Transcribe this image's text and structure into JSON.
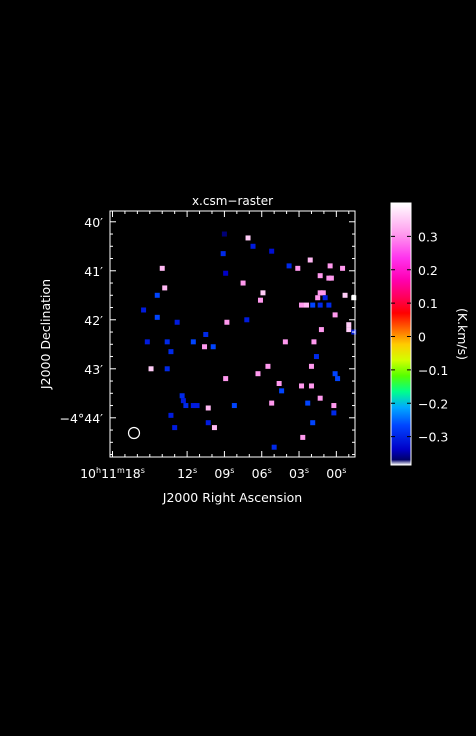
{
  "chart_data": {
    "type": "scatter",
    "title": "x.csm−raster",
    "xlabel": "J2000 Right Ascension",
    "ylabel": "J2000 Declination",
    "colorbar_label": "(K.km/s)",
    "x_ticks": [
      {
        "s": 78,
        "h": "10",
        "m": "11",
        "sec": "18"
      },
      {
        "s": 72,
        "sec": "12"
      },
      {
        "s": 69,
        "sec": "09"
      },
      {
        "s": 66,
        "sec": "06"
      },
      {
        "s": 63,
        "sec": "03"
      },
      {
        "s": 60,
        "sec": "00"
      }
    ],
    "y_ticks": [
      {
        "arcmin": 40,
        "label": "40′"
      },
      {
        "arcmin": 41,
        "label": "41′"
      },
      {
        "arcmin": 42,
        "label": "42′"
      },
      {
        "arcmin": 43,
        "label": "43′"
      },
      {
        "arcmin": 44,
        "label": "−4°44′"
      }
    ],
    "xlim_s": [
      78.2,
      58.5
    ],
    "ylim_arcmin": [
      39.78,
      44.8
    ],
    "cbar_ticks": [
      {
        "v": 0.3,
        "label": "0.3"
      },
      {
        "v": 0.2,
        "label": "0.2"
      },
      {
        "v": 0.1,
        "label": "0.1"
      },
      {
        "v": 0.0,
        "label": "0"
      },
      {
        "v": -0.1,
        "label": "−0.1"
      },
      {
        "v": -0.2,
        "label": "−0.2"
      },
      {
        "v": -0.3,
        "label": "−0.3"
      }
    ],
    "cbar_range": [
      -0.385,
      0.4
    ],
    "points": [
      {
        "s": 69.0,
        "d": 40.25,
        "v": -0.38
      },
      {
        "s": 67.1,
        "d": 40.33,
        "v": 0.35
      },
      {
        "s": 66.7,
        "d": 40.5,
        "v": -0.33
      },
      {
        "s": 69.1,
        "d": 40.65,
        "v": -0.32
      },
      {
        "s": 65.2,
        "d": 40.6,
        "v": -0.34
      },
      {
        "s": 62.1,
        "d": 40.78,
        "v": 0.33
      },
      {
        "s": 63.1,
        "d": 40.95,
        "v": 0.3
      },
      {
        "s": 60.5,
        "d": 40.9,
        "v": 0.3
      },
      {
        "s": 59.5,
        "d": 40.95,
        "v": 0.3
      },
      {
        "s": 74.0,
        "d": 40.95,
        "v": 0.33
      },
      {
        "s": 63.8,
        "d": 40.9,
        "v": -0.32
      },
      {
        "s": 68.9,
        "d": 41.05,
        "v": -0.35
      },
      {
        "s": 61.3,
        "d": 41.1,
        "v": 0.3
      },
      {
        "s": 60.6,
        "d": 41.15,
        "v": 0.3
      },
      {
        "s": 60.4,
        "d": 41.15,
        "v": 0.3
      },
      {
        "s": 67.5,
        "d": 41.25,
        "v": 0.3
      },
      {
        "s": 73.8,
        "d": 41.35,
        "v": 0.33
      },
      {
        "s": 65.9,
        "d": 41.45,
        "v": 0.35
      },
      {
        "s": 61.3,
        "d": 41.45,
        "v": 0.3
      },
      {
        "s": 61.05,
        "d": 41.45,
        "v": 0.3
      },
      {
        "s": 74.4,
        "d": 41.5,
        "v": -0.3
      },
      {
        "s": 59.3,
        "d": 41.5,
        "v": 0.35
      },
      {
        "s": 61.5,
        "d": 41.55,
        "v": 0.3
      },
      {
        "s": 60.9,
        "d": 41.55,
        "v": -0.33
      },
      {
        "s": 66.1,
        "d": 41.6,
        "v": 0.3
      },
      {
        "s": 58.6,
        "d": 41.55,
        "v": 0.4
      },
      {
        "s": 62.8,
        "d": 41.7,
        "v": 0.3
      },
      {
        "s": 62.4,
        "d": 41.7,
        "v": 0.33
      },
      {
        "s": 61.9,
        "d": 41.7,
        "v": -0.3
      },
      {
        "s": 61.3,
        "d": 41.7,
        "v": -0.32
      },
      {
        "s": 60.6,
        "d": 41.7,
        "v": -0.32
      },
      {
        "s": 75.5,
        "d": 41.8,
        "v": -0.33
      },
      {
        "s": 74.4,
        "d": 41.95,
        "v": -0.3
      },
      {
        "s": 60.1,
        "d": 41.9,
        "v": 0.3
      },
      {
        "s": 72.8,
        "d": 42.05,
        "v": -0.33
      },
      {
        "s": 68.8,
        "d": 42.05,
        "v": 0.3
      },
      {
        "s": 67.2,
        "d": 42.0,
        "v": -0.33
      },
      {
        "s": 59.0,
        "d": 42.1,
        "v": 0.35
      },
      {
        "s": 59.0,
        "d": 42.2,
        "v": 0.35
      },
      {
        "s": 61.2,
        "d": 42.2,
        "v": 0.3
      },
      {
        "s": 58.6,
        "d": 42.25,
        "v": -0.33
      },
      {
        "s": 70.5,
        "d": 42.3,
        "v": -0.32
      },
      {
        "s": 75.2,
        "d": 42.45,
        "v": -0.33
      },
      {
        "s": 73.6,
        "d": 42.45,
        "v": -0.32
      },
      {
        "s": 71.5,
        "d": 42.45,
        "v": -0.3
      },
      {
        "s": 64.1,
        "d": 42.45,
        "v": 0.3
      },
      {
        "s": 61.8,
        "d": 42.45,
        "v": 0.3
      },
      {
        "s": 70.6,
        "d": 42.55,
        "v": 0.3
      },
      {
        "s": 69.9,
        "d": 42.55,
        "v": -0.3
      },
      {
        "s": 73.3,
        "d": 42.65,
        "v": -0.32
      },
      {
        "s": 61.6,
        "d": 42.75,
        "v": -0.32
      },
      {
        "s": 65.5,
        "d": 42.95,
        "v": 0.3
      },
      {
        "s": 62.0,
        "d": 42.95,
        "v": 0.3
      },
      {
        "s": 74.9,
        "d": 43.0,
        "v": 0.35
      },
      {
        "s": 73.6,
        "d": 43.0,
        "v": -0.32
      },
      {
        "s": 66.3,
        "d": 43.1,
        "v": 0.3
      },
      {
        "s": 60.1,
        "d": 43.1,
        "v": -0.3
      },
      {
        "s": 59.9,
        "d": 43.2,
        "v": -0.3
      },
      {
        "s": 68.9,
        "d": 43.2,
        "v": 0.3
      },
      {
        "s": 64.6,
        "d": 43.3,
        "v": 0.3
      },
      {
        "s": 62.8,
        "d": 43.35,
        "v": 0.3
      },
      {
        "s": 62.0,
        "d": 43.35,
        "v": 0.3
      },
      {
        "s": 64.4,
        "d": 43.45,
        "v": -0.3
      },
      {
        "s": 72.4,
        "d": 43.55,
        "v": -0.32
      },
      {
        "s": 72.3,
        "d": 43.65,
        "v": -0.33
      },
      {
        "s": 61.3,
        "d": 43.6,
        "v": 0.3
      },
      {
        "s": 65.2,
        "d": 43.7,
        "v": 0.3
      },
      {
        "s": 62.3,
        "d": 43.7,
        "v": -0.3
      },
      {
        "s": 72.1,
        "d": 43.75,
        "v": -0.32
      },
      {
        "s": 71.5,
        "d": 43.75,
        "v": -0.33
      },
      {
        "s": 71.2,
        "d": 43.75,
        "v": -0.33
      },
      {
        "s": 68.2,
        "d": 43.75,
        "v": -0.3
      },
      {
        "s": 70.3,
        "d": 43.8,
        "v": 0.33
      },
      {
        "s": 60.2,
        "d": 43.75,
        "v": 0.3
      },
      {
        "s": 60.2,
        "d": 43.9,
        "v": -0.32
      },
      {
        "s": 73.3,
        "d": 43.95,
        "v": -0.33
      },
      {
        "s": 70.3,
        "d": 44.1,
        "v": -0.33
      },
      {
        "s": 61.9,
        "d": 44.1,
        "v": -0.3
      },
      {
        "s": 73.0,
        "d": 44.2,
        "v": -0.33
      },
      {
        "s": 69.8,
        "d": 44.2,
        "v": 0.33
      },
      {
        "s": 62.7,
        "d": 44.4,
        "v": 0.3
      },
      {
        "s": 65.0,
        "d": 44.6,
        "v": -0.32
      }
    ]
  }
}
